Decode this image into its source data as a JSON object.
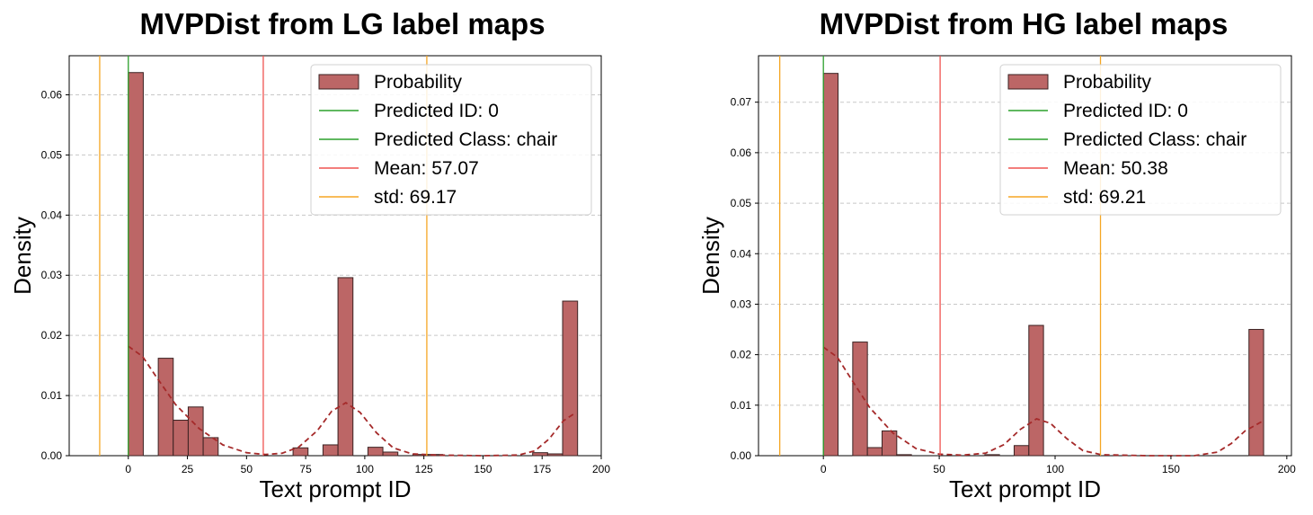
{
  "chart_data": [
    {
      "type": "bar",
      "title": "MVPDist from LG label maps",
      "xlabel": "Text prompt ID",
      "ylabel": "Density",
      "xlim": [
        -25,
        200
      ],
      "ylim": [
        0,
        0.0665
      ],
      "xticks": [
        "0",
        "25",
        "50",
        "75",
        "100",
        "125",
        "150",
        "175",
        "200"
      ],
      "yticks": [
        "0.00",
        "0.01",
        "0.02",
        "0.03",
        "0.04",
        "0.05",
        "0.06"
      ],
      "grid": "horizontal dashed",
      "legend_position": "top-right",
      "bin_width": 6.33,
      "bars": [
        {
          "x": 0,
          "value": 0.0637
        },
        {
          "x": 12.67,
          "value": 0.0162
        },
        {
          "x": 19,
          "value": 0.0059
        },
        {
          "x": 25.33,
          "value": 0.0081
        },
        {
          "x": 31.67,
          "value": 0.003
        },
        {
          "x": 69.67,
          "value": 0.0013
        },
        {
          "x": 82.33,
          "value": 0.0018
        },
        {
          "x": 88.67,
          "value": 0.0296
        },
        {
          "x": 101.33,
          "value": 0.0014
        },
        {
          "x": 107.67,
          "value": 0.0006
        },
        {
          "x": 120.33,
          "value": 0.0002
        },
        {
          "x": 126.67,
          "value": 0.0002
        },
        {
          "x": 171,
          "value": 0.0005
        },
        {
          "x": 177.33,
          "value": 0.0003
        },
        {
          "x": 183.67,
          "value": 0.0257
        }
      ],
      "kde": [
        [
          0,
          0.0182
        ],
        [
          6,
          0.0165
        ],
        [
          12,
          0.013
        ],
        [
          20,
          0.0085
        ],
        [
          30,
          0.0045
        ],
        [
          40,
          0.0018
        ],
        [
          50,
          0.0005
        ],
        [
          58,
          0.0002
        ],
        [
          65,
          0.0004
        ],
        [
          72,
          0.0014
        ],
        [
          80,
          0.0042
        ],
        [
          86,
          0.0074
        ],
        [
          92,
          0.0088
        ],
        [
          98,
          0.0072
        ],
        [
          105,
          0.0038
        ],
        [
          112,
          0.0013
        ],
        [
          120,
          0.0003
        ],
        [
          130,
          0.0001
        ],
        [
          150,
          0
        ],
        [
          165,
          0.0001
        ],
        [
          172,
          0.0008
        ],
        [
          178,
          0.0028
        ],
        [
          184,
          0.0058
        ],
        [
          189,
          0.0071
        ]
      ],
      "lines": [
        {
          "x": 0,
          "color": "#2ca02c"
        },
        {
          "x": 57.07,
          "color": "#ef5350"
        },
        {
          "x": -12.1,
          "color": "#f5a623"
        },
        {
          "x": 126.24,
          "color": "#f5a623"
        }
      ],
      "legend": [
        {
          "type": "patch",
          "label": "Probability",
          "color": "#bc6666"
        },
        {
          "type": "line",
          "label": "Predicted ID: 0",
          "color": "#2ca02c"
        },
        {
          "type": "line",
          "label": "Predicted Class: chair",
          "color": "#2ca02c"
        },
        {
          "type": "line",
          "label": "Mean: 57.07",
          "color": "#ef5350"
        },
        {
          "type": "line",
          "label": "std: 69.17",
          "color": "#f5a623"
        }
      ]
    },
    {
      "type": "bar",
      "title": "MVPDist from HG label maps",
      "xlabel": "Text prompt ID",
      "ylabel": "Density",
      "xlim": [
        -28,
        202
      ],
      "ylim": [
        0,
        0.0792
      ],
      "xticks": [
        "0",
        "50",
        "100",
        "150",
        "200"
      ],
      "yticks": [
        "0.00",
        "0.01",
        "0.02",
        "0.03",
        "0.04",
        "0.05",
        "0.06",
        "0.07"
      ],
      "grid": "horizontal dashed",
      "legend_position": "top-right",
      "bin_width": 6.33,
      "bars": [
        {
          "x": 0,
          "value": 0.0757
        },
        {
          "x": 12.67,
          "value": 0.0225
        },
        {
          "x": 19,
          "value": 0.0016
        },
        {
          "x": 25.33,
          "value": 0.0049
        },
        {
          "x": 31.67,
          "value": 0.0002
        },
        {
          "x": 69.67,
          "value": 0.0002
        },
        {
          "x": 82.33,
          "value": 0.002
        },
        {
          "x": 88.67,
          "value": 0.0258
        },
        {
          "x": 183.67,
          "value": 0.025
        }
      ],
      "kde": [
        [
          0,
          0.0215
        ],
        [
          6,
          0.0195
        ],
        [
          12,
          0.0152
        ],
        [
          20,
          0.0095
        ],
        [
          30,
          0.0045
        ],
        [
          40,
          0.0014
        ],
        [
          50,
          0.0003
        ],
        [
          60,
          0.0001
        ],
        [
          70,
          0.0005
        ],
        [
          78,
          0.0022
        ],
        [
          85,
          0.0052
        ],
        [
          92,
          0.0073
        ],
        [
          98,
          0.0064
        ],
        [
          105,
          0.0034
        ],
        [
          112,
          0.001
        ],
        [
          120,
          0.0002
        ],
        [
          140,
          0
        ],
        [
          160,
          0
        ],
        [
          170,
          0.0007
        ],
        [
          176,
          0.0024
        ],
        [
          182,
          0.0049
        ],
        [
          189,
          0.0067
        ]
      ],
      "lines": [
        {
          "x": 0,
          "color": "#2ca02c"
        },
        {
          "x": 50.38,
          "color": "#ef5350"
        },
        {
          "x": -18.83,
          "color": "#f5a623"
        },
        {
          "x": 119.59,
          "color": "#f5a623"
        }
      ],
      "legend": [
        {
          "type": "patch",
          "label": "Probability",
          "color": "#bc6666"
        },
        {
          "type": "line",
          "label": "Predicted ID: 0",
          "color": "#2ca02c"
        },
        {
          "type": "line",
          "label": "Predicted Class: chair",
          "color": "#2ca02c"
        },
        {
          "type": "line",
          "label": "Mean: 50.38",
          "color": "#ef5350"
        },
        {
          "type": "line",
          "label": "std: 69.21",
          "color": "#f5a623"
        }
      ]
    }
  ]
}
